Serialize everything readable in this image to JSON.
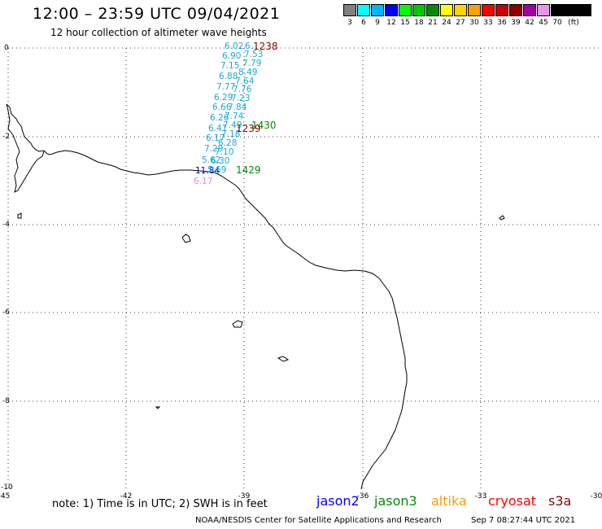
{
  "header": {
    "title": "12:00 – 23:59 UTC 09/04/2021",
    "subtitle": "12 hour collection of altimeter wave heights"
  },
  "legend": {
    "unit": "(ft)",
    "items": [
      {
        "label": "3",
        "color": "#808080"
      },
      {
        "label": "6",
        "color": "#00ffff"
      },
      {
        "label": "9",
        "color": "#00b4ff"
      },
      {
        "label": "12",
        "color": "#0000ff"
      },
      {
        "label": "15",
        "color": "#00ff00"
      },
      {
        "label": "18",
        "color": "#00c800"
      },
      {
        "label": "21",
        "color": "#008c00"
      },
      {
        "label": "24",
        "color": "#ffff00"
      },
      {
        "label": "27",
        "color": "#ffd200"
      },
      {
        "label": "30",
        "color": "#ffa000"
      },
      {
        "label": "33",
        "color": "#ff0000"
      },
      {
        "label": "36",
        "color": "#c80000"
      },
      {
        "label": "39",
        "color": "#8c0000"
      },
      {
        "label": "42",
        "color": "#a000a0"
      },
      {
        "label": "45",
        "color": "#e696e6"
      },
      {
        "label": "70",
        "color": "#000000"
      }
    ]
  },
  "axes": {
    "x_ticks": [
      "-45",
      "-42",
      "-39",
      "-36",
      "-33",
      "-30"
    ],
    "y_ticks": [
      "0",
      "-2",
      "-4",
      "-6",
      "-8",
      "-10"
    ]
  },
  "swh_values": [
    {
      "text": "6.02",
      "color": "#1aa8d6"
    },
    {
      "text": "6.",
      "color": "#1aa8d6"
    },
    {
      "text": "6.90",
      "color": "#1aa8d6"
    },
    {
      "text": "7.53",
      "color": "#1aa8d6"
    },
    {
      "text": "7.79",
      "color": "#1aa8d6"
    },
    {
      "text": "7.15",
      "color": "#1aa8d6"
    },
    {
      "text": "8.49",
      "color": "#1aa8d6"
    },
    {
      "text": "6.88",
      "color": "#1aa8d6"
    },
    {
      "text": "7.64",
      "color": "#1aa8d6"
    },
    {
      "text": "7.77",
      "color": "#1aa8d6"
    },
    {
      "text": "7.76",
      "color": "#1aa8d6"
    },
    {
      "text": "6.29",
      "color": "#1aa8d6"
    },
    {
      "text": "7.23",
      "color": "#1aa8d6"
    },
    {
      "text": "6.66",
      "color": "#1aa8d6"
    },
    {
      "text": "7.84",
      "color": "#1aa8d6"
    },
    {
      "text": "6.26",
      "color": "#1aa8d6"
    },
    {
      "text": "7.74",
      "color": "#1aa8d6"
    },
    {
      "text": "6.41",
      "color": "#1aa8d6"
    },
    {
      "text": "7.49",
      "color": "#1aa8d6"
    },
    {
      "text": "7.18",
      "color": "#1aa8d6"
    },
    {
      "text": "6.17",
      "color": "#1aa8d6"
    },
    {
      "text": "6.28",
      "color": "#1aa8d6"
    },
    {
      "text": "7.29",
      "color": "#1aa8d6"
    },
    {
      "text": "7.10",
      "color": "#1aa8d6"
    },
    {
      "text": "5.62",
      "color": "#1aa8d6"
    },
    {
      "text": "6.30",
      "color": "#1aa8d6"
    },
    {
      "text": "11.84",
      "color": "#0000cc"
    },
    {
      "text": "5.69",
      "color": "#1aa8d6"
    },
    {
      "text": "6.17",
      "color": "#e08ee0"
    }
  ],
  "pass_times": [
    {
      "text": "1238",
      "color": "#8b0000"
    },
    {
      "text": "1430",
      "color": "#008c00"
    },
    {
      "text": "1239",
      "color": "#8b0000"
    },
    {
      "text": "1429",
      "color": "#008c00"
    }
  ],
  "footer": {
    "note": "note:  1) Time is in UTC;  2) SWH is in feet",
    "satellites": [
      {
        "name": "jason2",
        "color": "#0000ff"
      },
      {
        "name": "jason3",
        "color": "#008c00"
      },
      {
        "name": "altika",
        "color": "#ff9900"
      },
      {
        "name": "cryosat",
        "color": "#ff0000"
      },
      {
        "name": "s3a",
        "color": "#8b0000"
      }
    ],
    "credit": "NOAA/NESDIS Center for Satellite Applications and Research",
    "timestamp": "Sep  7 08:27:44 UTC 2021"
  }
}
